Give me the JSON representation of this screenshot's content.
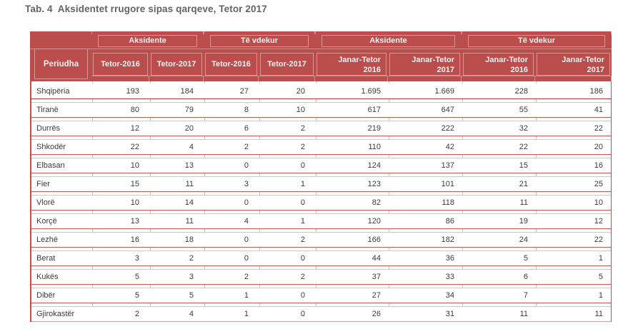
{
  "page": {
    "title": "Tab. 4  Aksidentet rrugore sipas qarqeve, Tetor 2017"
  },
  "colors": {
    "header_bg": "#bc4d4d",
    "header_cell_border": "#d99694",
    "row_separator_red": "#cb5653",
    "row_separator_pink": "#e9bcbb",
    "total_row_separator": "#9c3a37",
    "table_edge": "#c0504d",
    "title_text": "#646464",
    "header_text": "#f7f0ef",
    "body_text": "#3b3b3b"
  },
  "table": {
    "corner_label": "Periudha",
    "groups": [
      "Aksidente",
      "Të vdekur",
      "Aksidente",
      "Të vdekur"
    ],
    "subheaders": [
      {
        "label": "Tetor-2016"
      },
      {
        "label": "Tetor-2017"
      },
      {
        "label": "Tetor-2016"
      },
      {
        "label": "Tetor-2017"
      },
      {
        "line1": "Janar-Tetor",
        "line2": "2016"
      },
      {
        "line1": "Janar-Tetor",
        "line2": "2017"
      },
      {
        "line1": "Janar-Tetor",
        "line2": "2016"
      },
      {
        "line1": "Janar-Tetor",
        "line2": "2017"
      }
    ],
    "rows": [
      {
        "name": "Shqipëria",
        "values": [
          "193",
          "184",
          "27",
          "20",
          "1.695",
          "1.669",
          "228",
          "186"
        ]
      },
      {
        "name": "Tiranë",
        "values": [
          "80",
          "79",
          "8",
          "10",
          "617",
          "647",
          "55",
          "41"
        ]
      },
      {
        "name": "Durrës",
        "values": [
          "12",
          "20",
          "6",
          "2",
          "219",
          "222",
          "32",
          "22"
        ]
      },
      {
        "name": "Shkodër",
        "values": [
          "22",
          "4",
          "2",
          "2",
          "110",
          "42",
          "22",
          "20"
        ]
      },
      {
        "name": "Elbasan",
        "values": [
          "10",
          "13",
          "0",
          "0",
          "124",
          "137",
          "15",
          "16"
        ]
      },
      {
        "name": "Fier",
        "values": [
          "15",
          "11",
          "3",
          "1",
          "123",
          "101",
          "21",
          "25"
        ]
      },
      {
        "name": "Vlorë",
        "values": [
          "10",
          "14",
          "0",
          "0",
          "82",
          "118",
          "11",
          "10"
        ]
      },
      {
        "name": "Korçë",
        "values": [
          "13",
          "11",
          "4",
          "1",
          "120",
          "86",
          "19",
          "12"
        ]
      },
      {
        "name": "Lezhë",
        "values": [
          "16",
          "18",
          "0",
          "2",
          "166",
          "182",
          "24",
          "22"
        ]
      },
      {
        "name": "Berat",
        "values": [
          "3",
          "2",
          "0",
          "0",
          "44",
          "36",
          "5",
          "1"
        ]
      },
      {
        "name": "Kukës",
        "values": [
          "5",
          "3",
          "2",
          "2",
          "37",
          "33",
          "6",
          "5"
        ]
      },
      {
        "name": "Dibër",
        "values": [
          "5",
          "5",
          "1",
          "0",
          "27",
          "34",
          "7",
          "1"
        ]
      },
      {
        "name": "Gjirokastër",
        "values": [
          "2",
          "4",
          "1",
          "0",
          "26",
          "31",
          "11",
          "11"
        ]
      }
    ]
  }
}
